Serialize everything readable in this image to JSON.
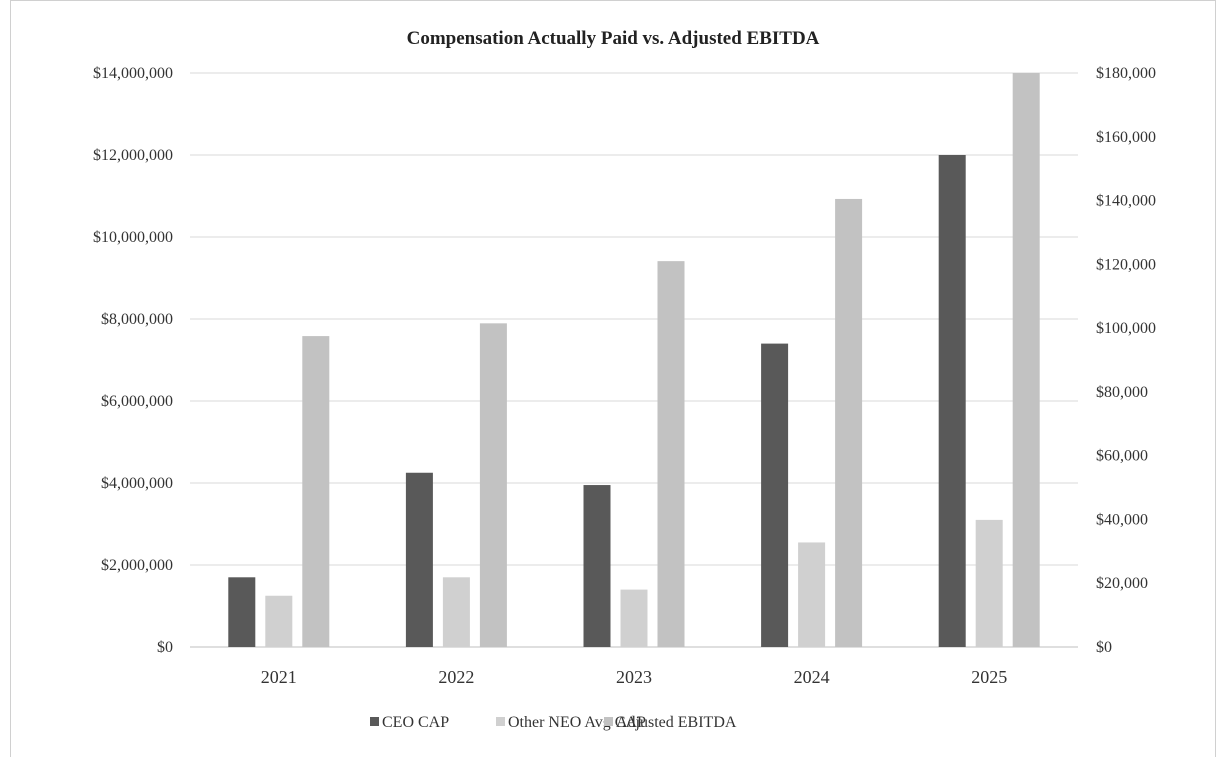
{
  "chart_data": {
    "type": "bar",
    "title": "Compensation Actually Paid vs. Adjusted EBITDA",
    "categories": [
      "2021",
      "2022",
      "2023",
      "2024",
      "2025"
    ],
    "y_left": {
      "range": [
        0,
        14000000
      ],
      "ticks": [
        "$0",
        "$2,000,000",
        "$4,000,000",
        "$6,000,000",
        "$8,000,000",
        "$10,000,000",
        "$12,000,000",
        "$14,000,000"
      ]
    },
    "y_right": {
      "range": [
        0,
        180000
      ],
      "ticks": [
        "$0",
        "$20,000",
        "$40,000",
        "$60,000",
        "$80,000",
        "$100,000",
        "$120,000",
        "$140,000",
        "$160,000",
        "$180,000"
      ]
    },
    "grid": true,
    "legend_position": "bottom",
    "series": [
      {
        "name": "CEO CAP",
        "axis": "left",
        "color": "#595959",
        "values": [
          1700000,
          4250000,
          3950000,
          7400000,
          12000000
        ]
      },
      {
        "name": "Other NEO Avg CAP",
        "axis": "left",
        "color": "#d0d0d0",
        "values": [
          1250000,
          1700000,
          1400000,
          2550000,
          3100000
        ]
      },
      {
        "name": "Adjusted EBITDA",
        "axis": "right",
        "color": "#c2c2c2",
        "values": [
          97500,
          101500,
          121000,
          140500,
          180000
        ]
      }
    ]
  }
}
